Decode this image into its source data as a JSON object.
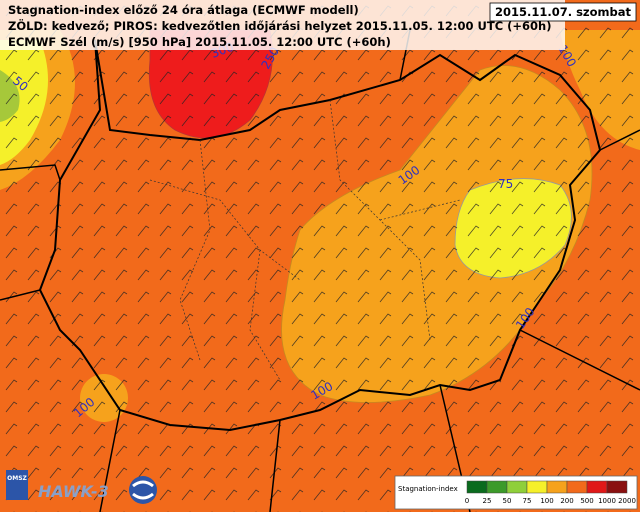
{
  "header": {
    "lines": [
      "Stagnation-index előző 24 óra átlaga (ECMWF modell)",
      "ZÖLD: kedvező; PIROS: kedvezőtlen időjárási helyzet 2015.11.05. 12:00 UTC (+60h)",
      "ECMWF Szél (m/s) [950 hPa] 2015.11.05. 12:00 UTC (+60h)"
    ],
    "date": "2015.11.07. szombat"
  },
  "contour_labels": [
    "50",
    "300",
    "250",
    "100",
    "100",
    "75",
    "100",
    "100",
    "100"
  ],
  "legend": {
    "title": "Stagnation-index",
    "labels": [
      "0",
      "25",
      "50",
      "75",
      "100",
      "200",
      "500",
      "1000",
      "2000"
    ]
  },
  "logos": {
    "agency": "OMSZ",
    "system": "HAWK-3"
  }
}
